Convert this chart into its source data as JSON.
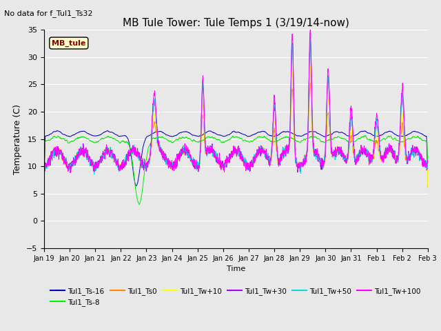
{
  "title": "MB Tule Tower: Tule Temps 1 (3/19/14-now)",
  "no_data_text": "No data for f_Tul1_Ts32",
  "xlabel": "Time",
  "ylabel": "Temperature (C)",
  "ylim": [
    -5,
    35
  ],
  "yticks": [
    -5,
    0,
    5,
    10,
    15,
    20,
    25,
    30,
    35
  ],
  "xtick_labels": [
    "Jan 19",
    "Jan 20",
    "Jan 21",
    "Jan 22",
    "Jan 23",
    "Jan 24",
    "Jan 25",
    "Jan 26",
    "Jan 27",
    "Jan 28",
    "Jan 29",
    "Jan 30",
    "Jan 31",
    "Feb 1",
    "Feb 2",
    "Feb 3"
  ],
  "legend_label": "MB_tule",
  "series_labels": [
    "Tul1_Ts-16",
    "Tul1_Ts-8",
    "Tul1_Ts0",
    "Tul1_Tw+10",
    "Tul1_Tw+30",
    "Tul1_Tw+50",
    "Tul1_Tw+100"
  ],
  "series_colors": [
    "#0000bb",
    "#00ee00",
    "#ff8800",
    "#ffff00",
    "#aa00ff",
    "#00dddd",
    "#ff00ff"
  ],
  "background_color": "#e8e8e8",
  "plot_bg_color": "#e8e8e8",
  "grid_color": "#ffffff"
}
